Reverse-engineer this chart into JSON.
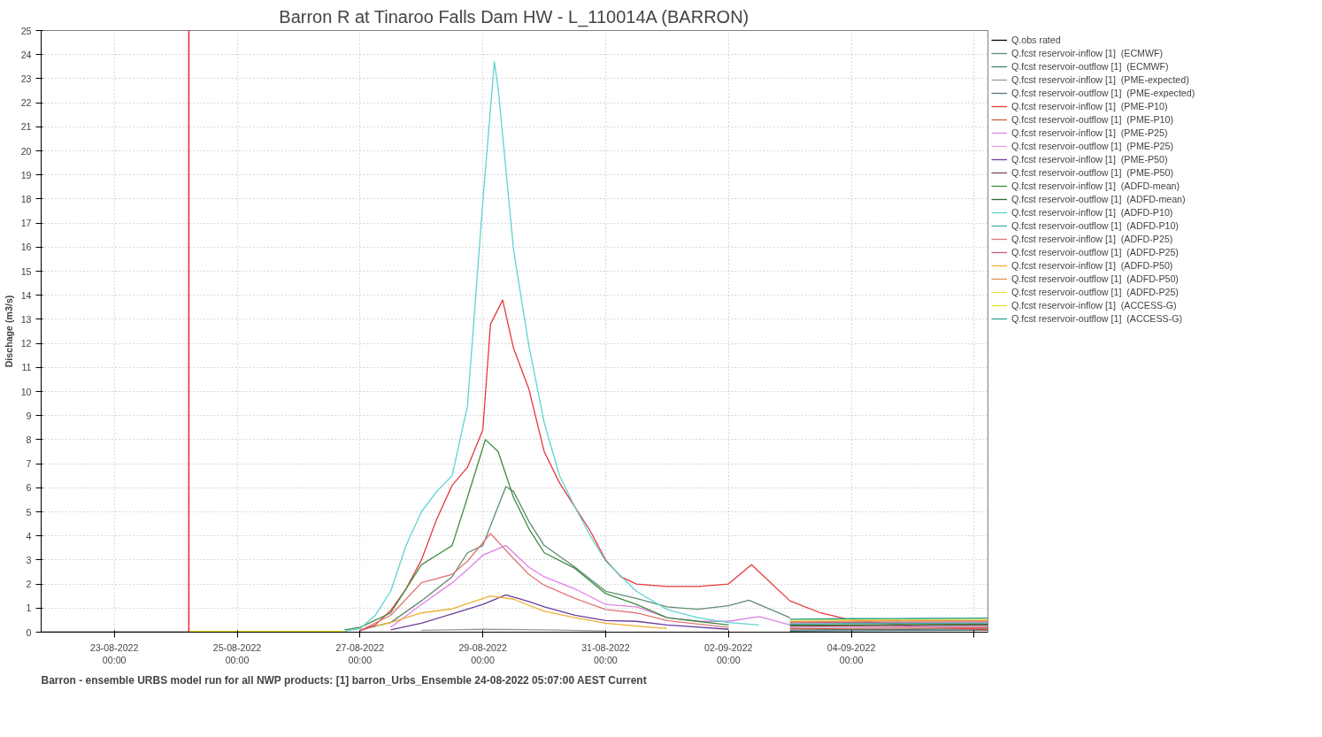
{
  "chart_data": {
    "type": "line",
    "title": "Barron R at Tinaroo Falls Dam HW - L_110014A (BARRON)",
    "ylabel": "Dischage (m3/s)",
    "annotations": [
      "Barron - ensemble URBS model run for all NWP products: [1] barron_Urbs_Ensemble 24-08-2022 05:07:00 AEST Current"
    ],
    "xlim": [
      "2022-08-21T19:24",
      "2022-09-06T05:24"
    ],
    "ylim": [
      0,
      25
    ],
    "xticks": [
      {
        "value": "2022-08-23",
        "label": "23-08-2022\n00:00"
      },
      {
        "value": "2022-08-25",
        "label": "25-08-2022\n00:00"
      },
      {
        "value": "2022-08-27",
        "label": "27-08-2022\n00:00"
      },
      {
        "value": "2022-08-29",
        "label": "29-08-2022\n00:00"
      },
      {
        "value": "2022-08-31",
        "label": "31-08-2022\n00:00"
      },
      {
        "value": "2022-09-02",
        "label": "02-09-2022\n00:00"
      },
      {
        "value": "2022-09-04",
        "label": "04-09-2022\n00:00"
      },
      {
        "value": "2022-09-06",
        "label": null
      }
    ],
    "yticks": [
      0,
      1,
      2,
      3,
      4,
      5,
      6,
      7,
      8,
      9,
      10,
      11,
      12,
      13,
      14,
      15,
      16,
      17,
      18,
      19,
      20,
      21,
      22,
      23,
      24,
      25
    ],
    "grid": true,
    "legend": "right",
    "ref_lines": [
      {
        "axis": "x",
        "value": "2022-08-24T05:07",
        "color": "#e8262b"
      }
    ],
    "x": [
      "2022-09-03T00:00",
      "2022-09-04T00:00",
      "2022-09-05T00:00",
      "2022-09-06T05:24"
    ],
    "series": [
      {
        "name": "Q.obs rated",
        "color": "#000000",
        "x": [
          "2022-08-21T19:24",
          "2022-08-24T05:07"
        ],
        "values": [
          0,
          0
        ]
      },
      {
        "name": "Q.fcst reservoir-inflow [1]  (ECMWF)",
        "color": "#5f8c70",
        "x": [
          "2022-08-27T00:00",
          "2022-08-27T12:00",
          "2022-08-28T00:00",
          "2022-08-28T12:00",
          "2022-08-28T18:00",
          "2022-08-29T00:00",
          "2022-08-29T09:00",
          "2022-08-29T12:00",
          "2022-08-29T18:00",
          "2022-08-30T00:00",
          "2022-08-30T12:00",
          "2022-08-31T00:00",
          "2022-08-31T12:00",
          "2022-09-01T00:00",
          "2022-09-01T12:00",
          "2022-09-02T00:00",
          "2022-09-02T08:00",
          "2022-09-03T00:00"
        ],
        "values": [
          0.1,
          0.4,
          1.3,
          2.3,
          3.3,
          3.6,
          6.05,
          5.85,
          4.6,
          3.6,
          2.7,
          1.7,
          1.4,
          1.05,
          0.95,
          1.1,
          1.33,
          0.6
        ]
      },
      {
        "name": "Q.fcst reservoir-outflow [1]  (ECMWF)",
        "color": "#4a7a7a",
        "values": [
          0.04,
          0.06,
          0.07,
          0.08
        ]
      },
      {
        "name": "Q.fcst reservoir-inflow [1]  (PME-expected)",
        "color": "#9a9a9a",
        "x": [
          "2022-08-28T00:00",
          "2022-08-29T00:00",
          "2022-08-30T00:00",
          "2022-08-31T00:00"
        ],
        "values": [
          0.08,
          0.12,
          0.1,
          0.05
        ]
      },
      {
        "name": "Q.fcst reservoir-outflow [1]  (PME-expected)",
        "color": "#5a7080",
        "values": [
          0.09,
          0.11,
          0.12,
          0.13
        ]
      },
      {
        "name": "Q.fcst reservoir-inflow [1]  (PME-P10)",
        "color": "#e8383d",
        "x": [
          "2022-08-27T00:00",
          "2022-08-27T06:00",
          "2022-08-27T12:00",
          "2022-08-27T18:00",
          "2022-08-28T00:00",
          "2022-08-28T06:00",
          "2022-08-28T12:00",
          "2022-08-28T18:00",
          "2022-08-29T00:00",
          "2022-08-29T03:00",
          "2022-08-29T07:45",
          "2022-08-29T12:00",
          "2022-08-29T18:00",
          "2022-08-30T00:00",
          "2022-08-30T06:00",
          "2022-08-30T12:00",
          "2022-08-30T18:00",
          "2022-08-31T00:00",
          "2022-08-31T06:00",
          "2022-08-31T12:00",
          "2022-09-01T00:00",
          "2022-09-01T12:00",
          "2022-09-02T00:00",
          "2022-09-02T09:00",
          "2022-09-03T00:00",
          "2022-09-03T12:00",
          "2022-09-04T00:00",
          "2022-09-05T00:00",
          "2022-09-06T05:24"
        ],
        "values": [
          0.05,
          0.3,
          0.9,
          1.8,
          3.0,
          4.7,
          6.1,
          6.85,
          8.4,
          12.8,
          13.8,
          11.8,
          10.1,
          7.5,
          6.2,
          5.2,
          4.2,
          3.0,
          2.3,
          2.0,
          1.9,
          1.9,
          2.0,
          2.8,
          1.3,
          0.8,
          0.5,
          0.25,
          0.1
        ]
      },
      {
        "name": "Q.fcst reservoir-outflow [1]  (PME-P10)",
        "color": "#d0603a",
        "values": [
          0.14,
          0.16,
          0.17,
          0.18
        ]
      },
      {
        "name": "Q.fcst reservoir-inflow [1]  (PME-P25)",
        "color": "#e080e8",
        "x": [
          "2022-08-27T12:00",
          "2022-08-28T00:00",
          "2022-08-28T12:00",
          "2022-08-28T18:00",
          "2022-08-29T00:00",
          "2022-08-29T09:00",
          "2022-08-29T12:00",
          "2022-08-29T18:00",
          "2022-08-30T00:00",
          "2022-08-30T12:00",
          "2022-08-31T00:00",
          "2022-08-31T12:00",
          "2022-09-01T00:00",
          "2022-09-01T12:00",
          "2022-09-02T00:00",
          "2022-09-02T12:00",
          "2022-09-03T00:00"
        ],
        "values": [
          0.2,
          1.15,
          2.05,
          2.6,
          3.2,
          3.6,
          3.3,
          2.7,
          2.3,
          1.8,
          1.15,
          1.05,
          0.6,
          0.45,
          0.45,
          0.65,
          0.3
        ]
      },
      {
        "name": "Q.fcst reservoir-outflow [1]  (PME-P25)",
        "color": "#e0a0e0",
        "values": [
          0.19,
          0.21,
          0.22,
          0.23
        ]
      },
      {
        "name": "Q.fcst reservoir-inflow [1]  (PME-P50)",
        "color": "#6a3d9a",
        "x": [
          "2022-08-27T12:00",
          "2022-08-28T00:00",
          "2022-08-28T12:00",
          "2022-08-29T00:00",
          "2022-08-29T09:00",
          "2022-08-29T18:00",
          "2022-08-30T00:00",
          "2022-08-30T12:00",
          "2022-08-31T00:00",
          "2022-08-31T12:00",
          "2022-09-01T00:00",
          "2022-09-02T00:00"
        ],
        "values": [
          0.1,
          0.37,
          0.76,
          1.15,
          1.55,
          1.27,
          1.05,
          0.7,
          0.48,
          0.45,
          0.3,
          0.12
        ]
      },
      {
        "name": "Q.fcst reservoir-outflow [1]  (PME-P50)",
        "color": "#7a4a4a",
        "values": [
          0.24,
          0.26,
          0.27,
          0.28
        ]
      },
      {
        "name": "Q.fcst reservoir-inflow [1]  (ADFD-mean)",
        "color": "#3d8b3d",
        "x": [
          "2022-08-26T18:00",
          "2022-08-27T00:00",
          "2022-08-27T12:00",
          "2022-08-28T00:00",
          "2022-08-28T06:00",
          "2022-08-28T12:00",
          "2022-08-28T18:00",
          "2022-08-29T01:00",
          "2022-08-29T06:00",
          "2022-08-29T12:00",
          "2022-08-29T18:00",
          "2022-08-30T00:00",
          "2022-08-30T12:00",
          "2022-08-31T00:00",
          "2022-08-31T12:00",
          "2022-09-01T00:00",
          "2022-09-01T12:00",
          "2022-09-02T00:00"
        ],
        "values": [
          0.1,
          0.2,
          0.8,
          2.8,
          3.2,
          3.6,
          5.6,
          8.0,
          7.5,
          5.6,
          4.3,
          3.3,
          2.65,
          1.6,
          1.15,
          0.6,
          0.45,
          0.3
        ]
      },
      {
        "name": "Q.fcst reservoir-outflow [1]  (ADFD-mean)",
        "color": "#2e6b2e",
        "values": [
          0.29,
          0.31,
          0.32,
          0.33
        ]
      },
      {
        "name": "Q.fcst reservoir-inflow [1]  (ADFD-P10)",
        "color": "#5fd3cf",
        "x": [
          "2022-08-26T18:00",
          "2022-08-27T00:00",
          "2022-08-27T06:00",
          "2022-08-27T12:00",
          "2022-08-27T18:00",
          "2022-08-28T00:00",
          "2022-08-28T06:00",
          "2022-08-28T12:00",
          "2022-08-28T18:00",
          "2022-08-29T00:00",
          "2022-08-29T04:30",
          "2022-08-29T06:00",
          "2022-08-29T12:00",
          "2022-08-29T18:00",
          "2022-08-30T00:00",
          "2022-08-30T06:00",
          "2022-08-30T12:00",
          "2022-08-30T18:00",
          "2022-08-31T00:00",
          "2022-08-31T12:00",
          "2022-09-01T00:00",
          "2022-09-01T12:00",
          "2022-09-02T00:00",
          "2022-09-02T12:00"
        ],
        "values": [
          0.03,
          0.15,
          0.7,
          1.7,
          3.6,
          5.0,
          5.85,
          6.5,
          9.4,
          17.9,
          23.7,
          22.6,
          15.9,
          11.9,
          8.7,
          6.5,
          5.2,
          4.0,
          2.95,
          1.7,
          0.94,
          0.6,
          0.4,
          0.3
        ]
      },
      {
        "name": "Q.fcst reservoir-outflow [1]  (ADFD-P10)",
        "color": "#40b0b0",
        "values": [
          0.34,
          0.36,
          0.37,
          0.38
        ]
      },
      {
        "name": "Q.fcst reservoir-inflow [1]  (ADFD-P25)",
        "color": "#e07878",
        "x": [
          "2022-08-27T00:00",
          "2022-08-27T12:00",
          "2022-08-28T00:00",
          "2022-08-28T12:00",
          "2022-08-28T18:00",
          "2022-08-29T03:00",
          "2022-08-29T12:00",
          "2022-08-29T18:00",
          "2022-08-30T00:00",
          "2022-08-30T12:00",
          "2022-08-31T00:00",
          "2022-08-31T12:00",
          "2022-09-01T00:00",
          "2022-09-02T00:00"
        ],
        "values": [
          0.07,
          0.7,
          2.05,
          2.4,
          2.95,
          4.1,
          3.06,
          2.4,
          1.95,
          1.4,
          0.94,
          0.8,
          0.48,
          0.2
        ]
      },
      {
        "name": "Q.fcst reservoir-outflow [1]  (ADFD-P25)",
        "color": "#c85a8a",
        "values": [
          0.39,
          0.41,
          0.42,
          0.43
        ]
      },
      {
        "name": "Q.fcst reservoir-inflow [1]  (ADFD-P50)",
        "color": "#f0b030",
        "x": [
          "2022-08-27T06:00",
          "2022-08-27T12:00",
          "2022-08-28T00:00",
          "2022-08-28T12:00",
          "2022-08-29T03:00",
          "2022-08-29T12:00",
          "2022-08-30T00:00",
          "2022-08-30T12:00",
          "2022-08-31T00:00",
          "2022-08-31T12:00",
          "2022-09-01T00:00"
        ],
        "values": [
          0.25,
          0.4,
          0.8,
          0.97,
          1.5,
          1.37,
          0.87,
          0.6,
          0.37,
          0.25,
          0.15
        ]
      },
      {
        "name": "Q.fcst reservoir-outflow [1]  (ADFD-P50)",
        "color": "#e09050",
        "values": [
          0.44,
          0.46,
          0.47,
          0.48
        ]
      },
      {
        "name": "Q.fcst reservoir-outflow [1]  (ADFD-P25)",
        "color": "#e8e040",
        "values": [
          0.49,
          0.51,
          0.52,
          0.53
        ]
      },
      {
        "name": "Q.fcst reservoir-inflow [1]  (ACCESS-G)",
        "color": "#e6e020",
        "x": [
          "2022-08-24T05:07",
          "2022-08-26T18:00"
        ],
        "values": [
          0.03,
          0.03
        ]
      },
      {
        "name": "Q.fcst reservoir-outflow [1]  (ACCESS-G)",
        "color": "#2aa08a",
        "values": [
          0.54,
          0.56,
          0.57,
          0.58
        ]
      }
    ]
  }
}
